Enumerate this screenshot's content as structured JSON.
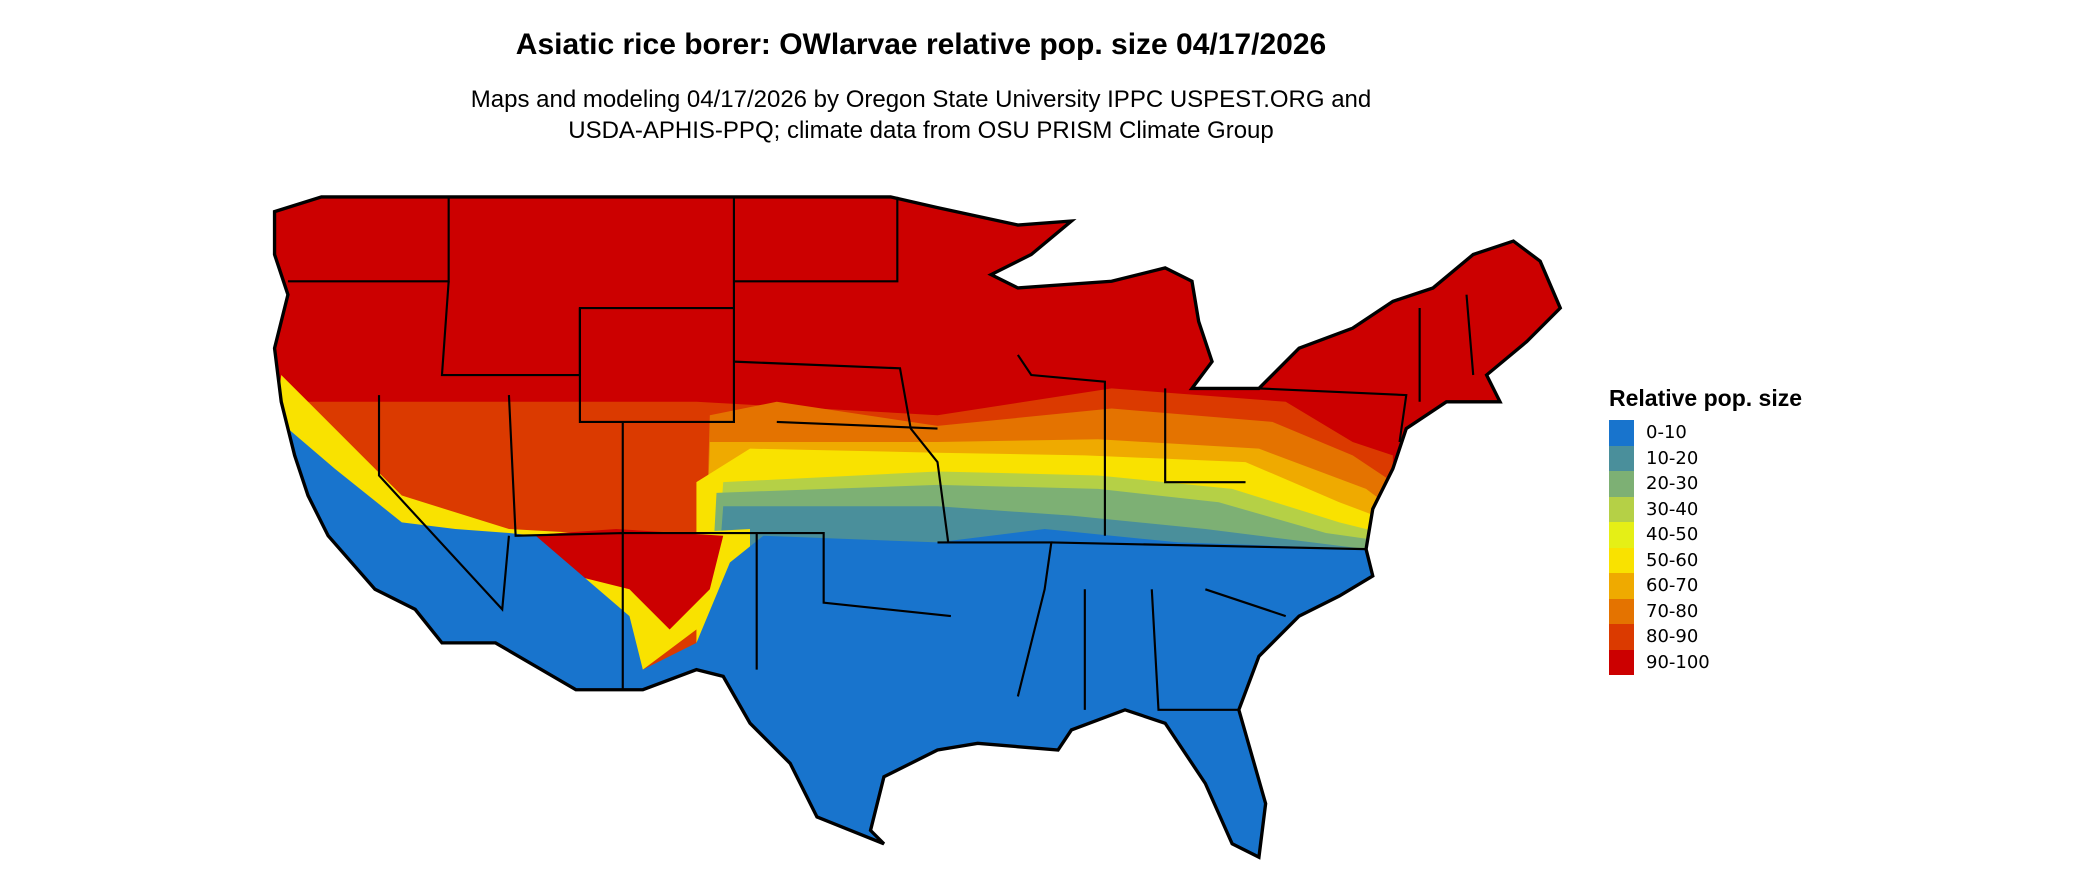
{
  "title": "Asiatic rice borer: OWlarvae relative pop. size 04/17/2026",
  "subtitle_lines": [
    "Maps and modeling 04/17/2026 by Oregon State University IPPC USPEST.ORG and",
    "USDA-APHIS-PPQ; climate data from OSU PRISM Climate Group"
  ],
  "map": {
    "region": "Contiguous United States",
    "dominant_north": "90-100",
    "dominant_south": "0-10"
  },
  "legend": {
    "title": "Relative pop. size",
    "items": [
      {
        "label": "0-10",
        "color": "#1874CD"
      },
      {
        "label": "10-20",
        "color": "#4A8F9B"
      },
      {
        "label": "20-30",
        "color": "#7DB074"
      },
      {
        "label": "30-40",
        "color": "#B5D046"
      },
      {
        "label": "40-50",
        "color": "#E5EF16"
      },
      {
        "label": "50-60",
        "color": "#F9E200"
      },
      {
        "label": "60-70",
        "color": "#EFAA00"
      },
      {
        "label": "70-80",
        "color": "#E47300"
      },
      {
        "label": "80-90",
        "color": "#DB3A00"
      },
      {
        "label": "90-100",
        "color": "#CC0000"
      }
    ]
  }
}
